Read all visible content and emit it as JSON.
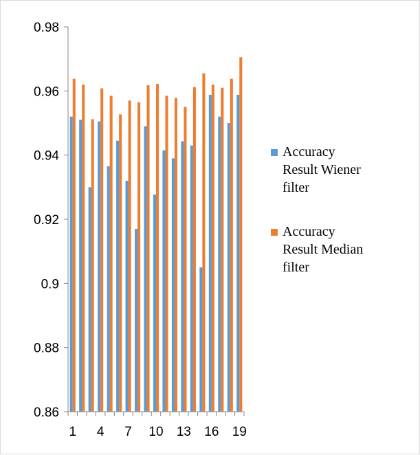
{
  "chart_data": {
    "type": "bar",
    "title": "",
    "xlabel": "",
    "ylabel": "",
    "ylim": [
      0.86,
      0.98
    ],
    "y_ticks": [
      "0.86",
      "0.88",
      "0.9",
      "0.92",
      "0.94",
      "0.96",
      "0.98"
    ],
    "y_tick_values": [
      0.86,
      0.88,
      0.9,
      0.92,
      0.94,
      0.96,
      0.98
    ],
    "categories": [
      "1",
      "2",
      "3",
      "4",
      "5",
      "6",
      "7",
      "8",
      "9",
      "10",
      "11",
      "12",
      "13",
      "14",
      "15",
      "16",
      "17",
      "18",
      "19"
    ],
    "x_tick_labels_shown": [
      "1",
      "4",
      "7",
      "10",
      "13",
      "16",
      "19"
    ],
    "grid": false,
    "legend_position": "right",
    "series": [
      {
        "name": "Accuracy Result Wiener filter",
        "legend_lines": [
          "Accuracy",
          "Result Wiener",
          "filter"
        ],
        "color": "#5b9bd5",
        "values": [
          0.952,
          0.951,
          0.93,
          0.9505,
          0.9365,
          0.9445,
          0.932,
          0.917,
          0.949,
          0.9277,
          0.9415,
          0.939,
          0.9443,
          0.943,
          0.905,
          0.9588,
          0.952,
          0.95,
          0.9588
        ]
      },
      {
        "name": "Accuracy Result Median filter",
        "legend_lines": [
          "Accuracy",
          "Result Median",
          "filter"
        ],
        "color": "#ed7d31",
        "values": [
          0.9638,
          0.962,
          0.9512,
          0.9608,
          0.9585,
          0.9527,
          0.957,
          0.9565,
          0.9618,
          0.9622,
          0.9585,
          0.9578,
          0.955,
          0.9612,
          0.9655,
          0.962,
          0.961,
          0.9638,
          0.9705
        ]
      }
    ]
  }
}
